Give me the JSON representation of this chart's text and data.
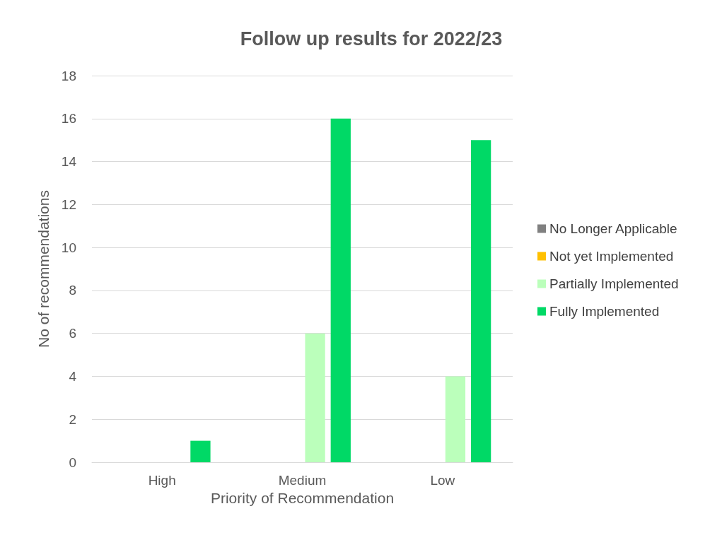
{
  "chart_data": {
    "type": "bar",
    "title": "Follow up results for 2022/23",
    "xlabel": "Priority of Recommendation",
    "ylabel": "No of recommendations",
    "categories": [
      "High",
      "Medium",
      "Low"
    ],
    "series": [
      {
        "name": "No Longer Applicable",
        "color": "#808080",
        "values": [
          0,
          0,
          0
        ]
      },
      {
        "name": "Not yet Implemented",
        "color": "#ffc000",
        "values": [
          0,
          0,
          0
        ]
      },
      {
        "name": "Partially Implemented",
        "color": "#bbffbb",
        "values": [
          0,
          6,
          4
        ]
      },
      {
        "name": "Fully Implemented",
        "color": "#00d966",
        "values": [
          1,
          16,
          15
        ]
      }
    ],
    "ylim": [
      0,
      18
    ],
    "yticks": [
      0,
      2,
      4,
      6,
      8,
      10,
      12,
      14,
      16,
      18
    ],
    "grid": "y",
    "legend": "right"
  }
}
